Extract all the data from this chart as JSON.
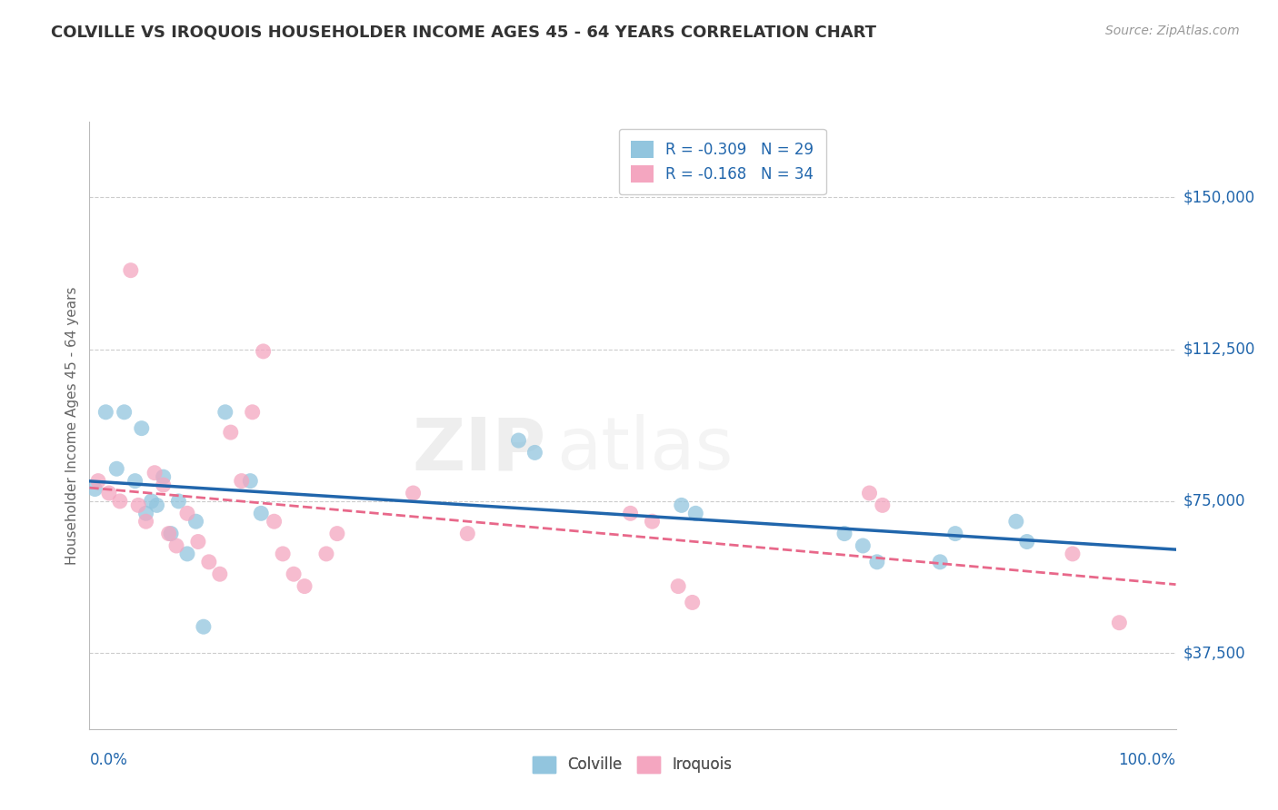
{
  "title": "COLVILLE VS IROQUOIS HOUSEHOLDER INCOME AGES 45 - 64 YEARS CORRELATION CHART",
  "source": "Source: ZipAtlas.com",
  "ylabel": "Householder Income Ages 45 - 64 years",
  "ytick_labels": [
    "$37,500",
    "$75,000",
    "$112,500",
    "$150,000"
  ],
  "ytick_values": [
    37500,
    75000,
    112500,
    150000
  ],
  "ylim": [
    18750,
    168750
  ],
  "xlim": [
    0.0,
    1.0
  ],
  "colville_R": -0.309,
  "colville_N": 29,
  "iroquois_R": -0.168,
  "iroquois_N": 34,
  "colville_color": "#92c5de",
  "iroquois_color": "#f4a6c0",
  "colville_line_color": "#2166ac",
  "iroquois_line_color": "#e8688a",
  "label_color": "#2166ac",
  "watermark_text": "ZIP",
  "watermark_text2": "atlas",
  "colville_x": [
    0.005,
    0.015,
    0.025,
    0.032,
    0.042,
    0.048,
    0.052,
    0.057,
    0.062,
    0.068,
    0.075,
    0.082,
    0.09,
    0.098,
    0.105,
    0.125,
    0.148,
    0.158,
    0.395,
    0.41,
    0.545,
    0.558,
    0.695,
    0.712,
    0.725,
    0.783,
    0.797,
    0.853,
    0.863
  ],
  "colville_y": [
    78000,
    97000,
    83000,
    97000,
    80000,
    93000,
    72000,
    75000,
    74000,
    81000,
    67000,
    75000,
    62000,
    70000,
    44000,
    97000,
    80000,
    72000,
    90000,
    87000,
    74000,
    72000,
    67000,
    64000,
    60000,
    60000,
    67000,
    70000,
    65000
  ],
  "iroquois_x": [
    0.008,
    0.018,
    0.028,
    0.038,
    0.045,
    0.052,
    0.06,
    0.068,
    0.073,
    0.08,
    0.09,
    0.1,
    0.11,
    0.12,
    0.13,
    0.14,
    0.15,
    0.16,
    0.17,
    0.178,
    0.188,
    0.198,
    0.218,
    0.228,
    0.298,
    0.348,
    0.498,
    0.518,
    0.542,
    0.555,
    0.718,
    0.73,
    0.905,
    0.948
  ],
  "iroquois_y": [
    80000,
    77000,
    75000,
    132000,
    74000,
    70000,
    82000,
    79000,
    67000,
    64000,
    72000,
    65000,
    60000,
    57000,
    92000,
    80000,
    97000,
    112000,
    70000,
    62000,
    57000,
    54000,
    62000,
    67000,
    77000,
    67000,
    72000,
    70000,
    54000,
    50000,
    77000,
    74000,
    62000,
    45000
  ]
}
